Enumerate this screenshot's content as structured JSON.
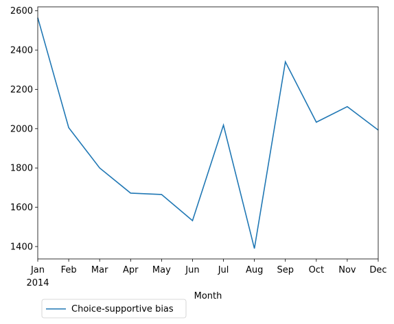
{
  "chart_data": {
    "type": "line",
    "x": [
      "Jan",
      "Feb",
      "Mar",
      "Apr",
      "May",
      "Jun",
      "Jul",
      "Aug",
      "Sep",
      "Oct",
      "Nov",
      "Dec"
    ],
    "year_label": "2014",
    "series": [
      {
        "name": "Choice-supportive bias",
        "color": "#1f77b4",
        "values": [
          2565,
          2005,
          1800,
          1672,
          1665,
          1532,
          2018,
          1390,
          2340,
          2033,
          2112,
          1993
        ]
      }
    ],
    "xlabel": "Month",
    "ylabel": "",
    "ylim": [
      1337,
      2620
    ],
    "yticks": [
      1400,
      1600,
      1800,
      2000,
      2200,
      2400,
      2600
    ],
    "grid": false,
    "legend_position": "bottom-left, below plot"
  }
}
